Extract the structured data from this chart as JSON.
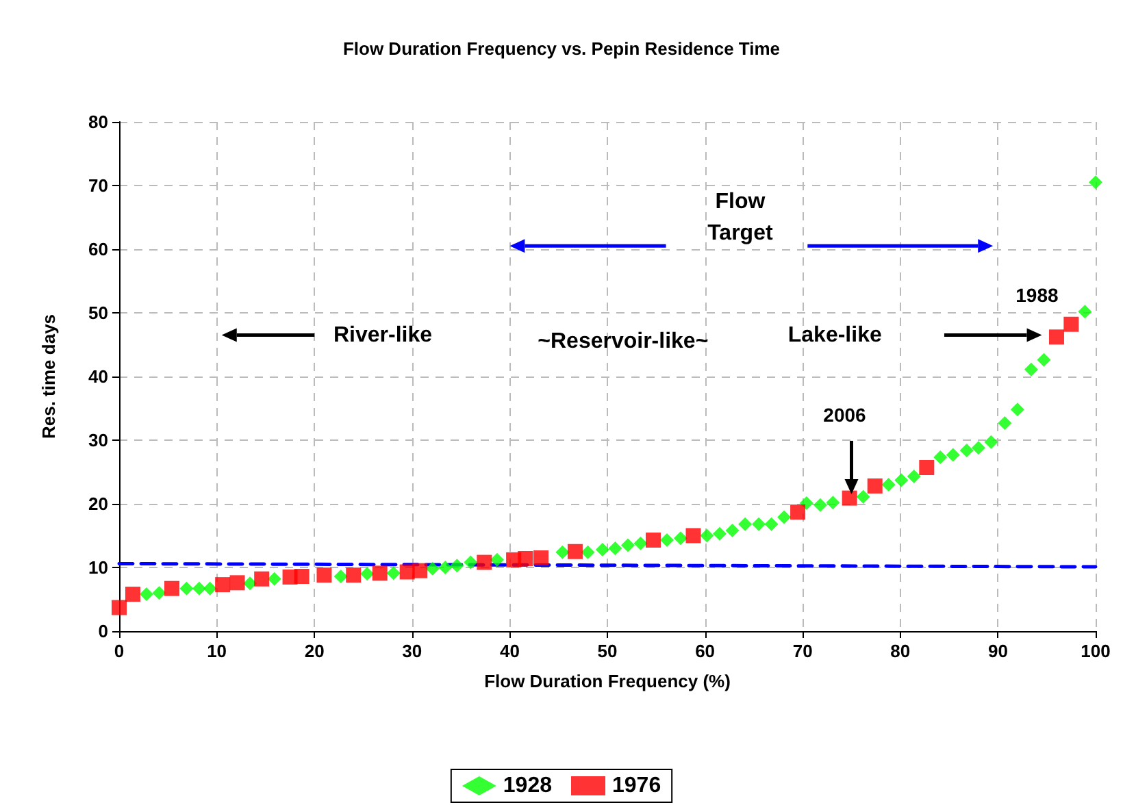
{
  "chart_data": {
    "type": "scatter",
    "title": "Flow Duration Frequency vs. Pepin Residence Time",
    "xlabel": "Flow Duration Frequency (%)",
    "ylabel": "Res. time days",
    "xlim": [
      0,
      100
    ],
    "xticks": [
      0,
      10,
      20,
      30,
      40,
      50,
      60,
      70,
      80,
      90,
      100
    ],
    "ylim": [
      0,
      80
    ],
    "yticks": [
      0,
      10,
      20,
      30,
      40,
      50,
      60,
      70,
      80
    ],
    "grid": true,
    "legend": "bottom",
    "series": [
      {
        "name": "1928",
        "color": "#00ff00",
        "marker": "diamond",
        "x": [
          2.8,
          4.1,
          6.9,
          8.2,
          9.3,
          13.4,
          15.9,
          22.7,
          25.4,
          28.1,
          32.1,
          33.4,
          34.6,
          36,
          38.7,
          45.4,
          48,
          49.5,
          50.8,
          52.1,
          53.4,
          56.1,
          57.5,
          60.2,
          61.5,
          62.8,
          64.1,
          65.5,
          66.8,
          68.1,
          70.4,
          71.8,
          73.1,
          76.2,
          78.8,
          80.1,
          81.4,
          84.1,
          85.4,
          86.8,
          88,
          89.3,
          90.7,
          92,
          93.4,
          94.7,
          98.9,
          100
        ],
        "values": [
          5.8,
          6,
          6.7,
          6.7,
          6.7,
          7.5,
          8.2,
          8.6,
          9,
          9.1,
          9.8,
          10,
          10.3,
          10.8,
          11.2,
          12.4,
          12.4,
          12.8,
          13,
          13.5,
          13.8,
          14.3,
          14.6,
          15,
          15.3,
          15.8,
          16.8,
          16.8,
          16.8,
          17.9,
          20.1,
          19.8,
          20.2,
          21.1,
          23,
          23.7,
          24.3,
          27.3,
          27.7,
          28.4,
          28.8,
          29.7,
          32.7,
          34.8,
          41.1,
          42.6,
          50.2,
          70.5
        ]
      },
      {
        "name": "1976",
        "color": "#ff0000",
        "marker": "square",
        "x": [
          0,
          1.4,
          5.4,
          10.6,
          12.1,
          14.6,
          17.5,
          18.7,
          21,
          24,
          26.7,
          29.5,
          30.8,
          37.4,
          40.4,
          41.6,
          43.2,
          46.7,
          54.7,
          58.8,
          69.5,
          74.8,
          77.4,
          82.7,
          96,
          97.5
        ],
        "values": [
          3.7,
          5.8,
          6.7,
          7.3,
          7.6,
          8.2,
          8.5,
          8.6,
          8.8,
          8.8,
          9.1,
          9.3,
          9.5,
          10.8,
          11.2,
          11.4,
          11.5,
          12.5,
          14.3,
          15,
          18.7,
          20.9,
          22.8,
          25.7,
          46.2,
          48.2
        ]
      },
      {
        "type": "line",
        "color": "#0000ff",
        "line_style": "dashed",
        "marker": "none",
        "x": [
          0,
          100
        ],
        "values": [
          10.6,
          10.1
        ]
      }
    ],
    "annotations": [
      "Flow Target",
      "River-like",
      "~Reservoir-like~",
      "Lake-like",
      "2006",
      "1988"
    ]
  }
}
